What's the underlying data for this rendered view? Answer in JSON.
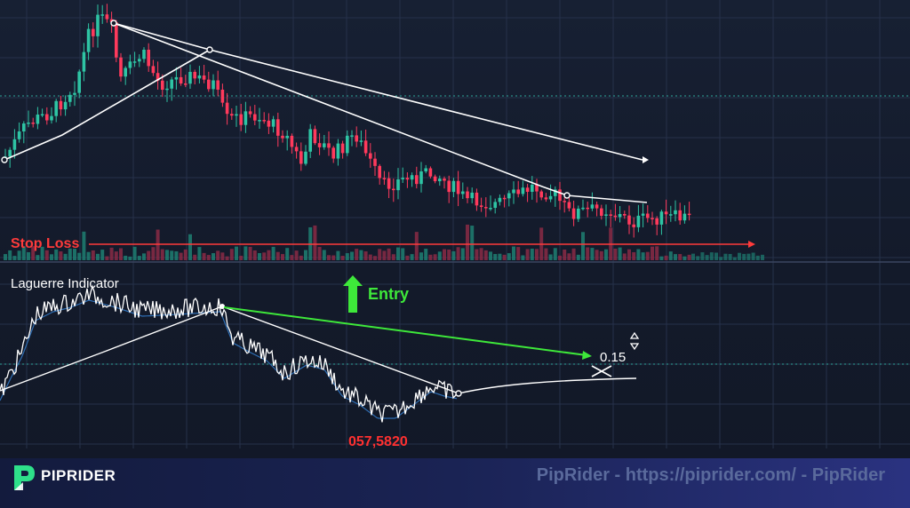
{
  "labels": {
    "stop_loss": "Stop Loss",
    "indicator_title": "Laguerre Indicator",
    "entry": "Entry",
    "value_small": "0.15",
    "value_price": "057,5820"
  },
  "footer": {
    "brand": "PIPRIDER",
    "watermark": "PipRider - https://piprider.com/ - PipRider"
  },
  "colors": {
    "background": "#141a2b",
    "bull_candle": "#2ec4a4",
    "bear_candle": "#ff3a5c",
    "stop_loss": "#ff3b3b",
    "entry_arrow": "#3ee83a",
    "trend_line": "#ffffff",
    "indicator_line": "#ffffff",
    "signal_line": "#2f6fb5",
    "grid": "#26314a"
  },
  "icons": {
    "entry_arrow": "arrow-up-icon",
    "logo": "piprider-logo-icon"
  }
}
